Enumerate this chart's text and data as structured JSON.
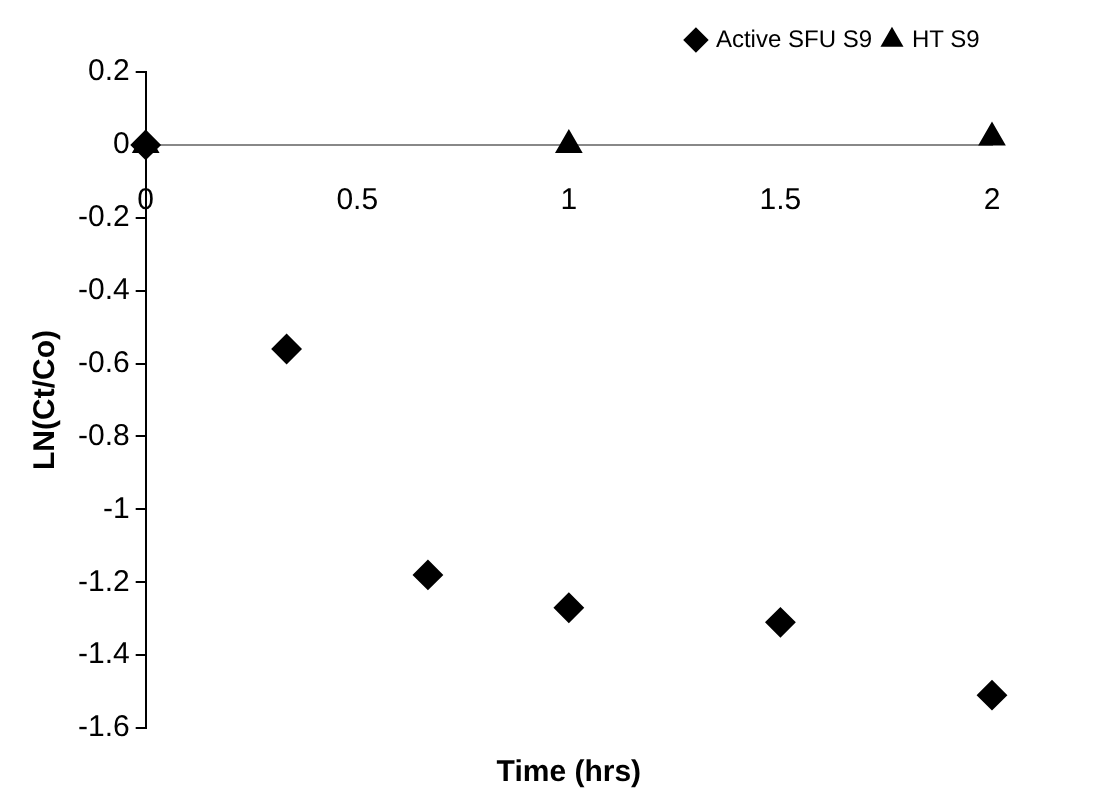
{
  "chart_data": {
    "type": "scatter",
    "xlabel": "Time (hrs)",
    "ylabel": "LN(Ct/Co)",
    "xlim": [
      0,
      2
    ],
    "xticks": [
      0,
      0.5,
      1,
      1.5,
      2
    ],
    "ylim": [
      -1.6,
      0.2
    ],
    "yticks": [
      -1.6,
      -1.4,
      -1.2,
      -1,
      -0.8,
      -0.6,
      -0.4,
      -0.2,
      0,
      0.2
    ],
    "grid": false,
    "legend": "top right",
    "series": [
      {
        "name": "Active SFU S9",
        "color": "#000000",
        "marker": "diamond",
        "x": [
          0,
          0.333,
          0.667,
          1,
          1.5,
          2
        ],
        "values": [
          0,
          -0.56,
          -1.18,
          -1.27,
          -1.31,
          -1.51
        ]
      },
      {
        "name": "HT S9",
        "color": "#000000",
        "marker": "triangle",
        "x": [
          0,
          1,
          2
        ],
        "values": [
          0,
          0,
          0.02
        ]
      }
    ]
  }
}
